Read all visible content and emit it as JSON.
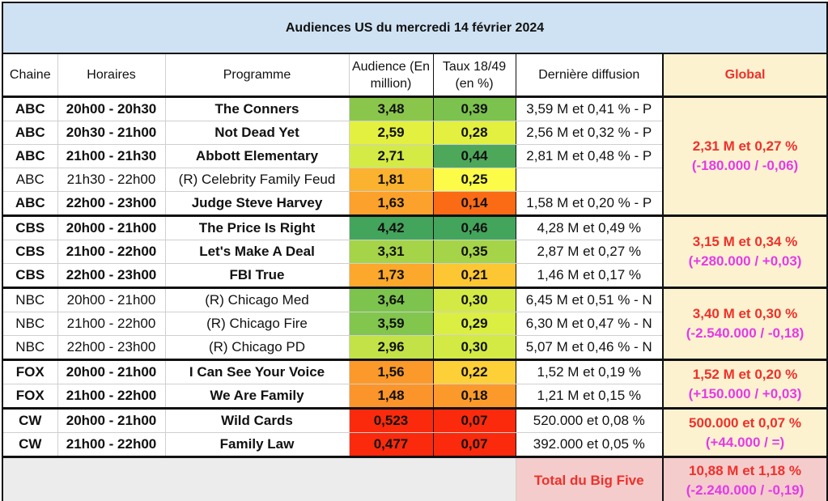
{
  "title": "Audiences US du mercredi 14 février 2024",
  "headers": {
    "chaine": "Chaine",
    "horaires": "Horaires",
    "programme": "Programme",
    "audience": "Audience (En million)",
    "taux": "Taux 18/49 (en %)",
    "derniere": "Dernière diffusion",
    "global": "Global"
  },
  "groups": [
    {
      "global": "2,31 M et 0,27 %",
      "delta": "(-180.000 / -0,06)",
      "rows": [
        {
          "chaine": "ABC",
          "horaires": "20h00 - 20h30",
          "programme": "The Conners",
          "audience": "3,48",
          "taux": "0,39",
          "derniere": "3,59 M et 0,41 % - P",
          "bold": true,
          "ac": "#8bc64c",
          "tc": "#7cc24e"
        },
        {
          "chaine": "ABC",
          "horaires": "20h30 - 21h00",
          "programme": "Not Dead Yet",
          "audience": "2,59",
          "taux": "0,28",
          "derniere": "2,56 M et 0,32 % - P",
          "bold": true,
          "ac": "#e3f040",
          "tc": "#e3f040"
        },
        {
          "chaine": "ABC",
          "horaires": "21h00 - 21h30",
          "programme": "Abbott Elementary",
          "audience": "2,71",
          "taux": "0,44",
          "derniere": "2,81 M et 0,48 % - P",
          "bold": true,
          "ac": "#d4ea45",
          "tc": "#4ea85a"
        },
        {
          "chaine": "ABC",
          "horaires": "21h30 - 22h00",
          "programme": "(R) Celebrity Family Feud",
          "audience": "1,81",
          "taux": "0,25",
          "derniere": "",
          "bold": false,
          "ac": "#fbb22e",
          "tc": "#fbfb48"
        },
        {
          "chaine": "ABC",
          "horaires": "22h00 - 23h00",
          "programme": "Judge Steve Harvey",
          "audience": "1,63",
          "taux": "0,14",
          "derniere": "1,58 M et 0,20 % - P",
          "bold": true,
          "ac": "#fba12c",
          "tc": "#fb6b16"
        }
      ]
    },
    {
      "global": "3,15 M et 0,34 %",
      "delta": "(+280.000 / +0,03)",
      "rows": [
        {
          "chaine": "CBS",
          "horaires": "20h00 - 21h00",
          "programme": "The Price Is Right",
          "audience": "4,42",
          "taux": "0,46",
          "derniere": "4,28 M et 0,49 %",
          "bold": true,
          "ac": "#43a45c",
          "tc": "#43a45c"
        },
        {
          "chaine": "CBS",
          "horaires": "21h00 - 22h00",
          "programme": "Let's Make A Deal",
          "audience": "3,31",
          "taux": "0,35",
          "derniere": "2,87 M et 0,27 %",
          "bold": true,
          "ac": "#a5d448",
          "tc": "#a5d448"
        },
        {
          "chaine": "CBS",
          "horaires": "22h00 - 23h00",
          "programme": "FBI True",
          "audience": "1,73",
          "taux": "0,21",
          "derniere": "1,46 M et 0,17 %",
          "bold": true,
          "ac": "#fba82c",
          "tc": "#fdc734"
        }
      ]
    },
    {
      "global": "3,40 M et 0,30 %",
      "delta": "(-2.540.000 / -0,18)",
      "rows": [
        {
          "chaine": "NBC",
          "horaires": "20h00 - 21h00",
          "programme": "(R) Chicago Med",
          "audience": "3,64",
          "taux": "0,30",
          "derniere": "6,45 M et 0,51 % - N",
          "bold": false,
          "ac": "#7dc44e",
          "tc": "#d3ea45"
        },
        {
          "chaine": "NBC",
          "horaires": "21h00 - 22h00",
          "programme": "(R) Chicago Fire",
          "audience": "3,59",
          "taux": "0,29",
          "derniere": "6,30 M et 0,47 % - N",
          "bold": false,
          "ac": "#82c64d",
          "tc": "#dbee42"
        },
        {
          "chaine": "NBC",
          "horaires": "22h00 - 23h00",
          "programme": "(R) Chicago PD",
          "audience": "2,96",
          "taux": "0,30",
          "derniere": "5,07 M et 0,46 % - N",
          "bold": false,
          "ac": "#c3e247",
          "tc": "#d3ea45"
        }
      ]
    },
    {
      "global": "1,52 M et 0,20 %",
      "delta": "(+150.000 / +0,03)",
      "rows": [
        {
          "chaine": "FOX",
          "horaires": "20h00 - 21h00",
          "programme": "I Can See Your Voice",
          "audience": "1,56",
          "taux": "0,22",
          "derniere": "1,52 M et 0,19 %",
          "bold": true,
          "ac": "#fb9a2a",
          "tc": "#fdd038"
        },
        {
          "chaine": "FOX",
          "horaires": "21h00 - 22h00",
          "programme": "We Are Family",
          "audience": "1,48",
          "taux": "0,18",
          "derniere": "1,21 M et 0,15 %",
          "bold": true,
          "ac": "#fb942a",
          "tc": "#fb9a2a"
        }
      ]
    },
    {
      "global": "500.000 et 0,07 %",
      "delta": "(+44.000 / =)",
      "rows": [
        {
          "chaine": "CW",
          "horaires": "20h00 - 21h00",
          "programme": "Wild Cards",
          "audience": "0,523",
          "taux": "0,07",
          "derniere": "520.000 et 0,08 %",
          "bold": true,
          "ac": "#fb2a0c",
          "tc": "#fb2a0c"
        },
        {
          "chaine": "CW",
          "horaires": "21h00 - 22h00",
          "programme": "Family Law",
          "audience": "0,477",
          "taux": "0,07",
          "derniere": "392.000 et 0,05 %",
          "bold": true,
          "ac": "#fb2a0c",
          "tc": "#fb2a0c"
        }
      ]
    }
  ],
  "footer": {
    "label": "Total du Big Five",
    "total": "10,88 M et 1,18 %",
    "delta": "(-2.240.000 / -0,19)"
  }
}
